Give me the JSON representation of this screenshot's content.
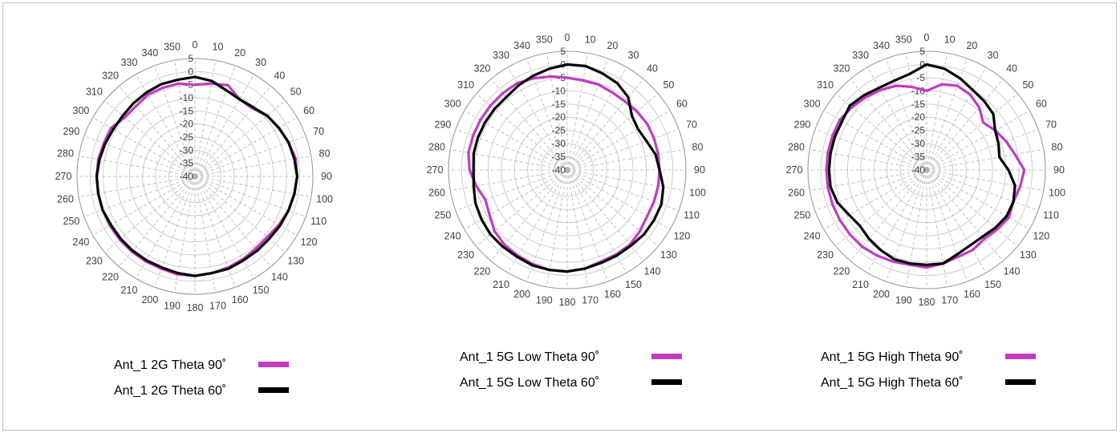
{
  "chart_data": [
    {
      "type": "polar-line",
      "angle_ticks": [
        0,
        10,
        20,
        30,
        40,
        50,
        60,
        70,
        80,
        90,
        100,
        110,
        120,
        130,
        140,
        150,
        160,
        170,
        180,
        190,
        200,
        210,
        220,
        230,
        240,
        250,
        260,
        270,
        280,
        290,
        300,
        310,
        320,
        330,
        340,
        350
      ],
      "radial_ticks": [
        5,
        0,
        -5,
        -10,
        -15,
        -20,
        -25,
        -30,
        -35,
        -40
      ],
      "rlim": [
        -40,
        5
      ],
      "grid": true,
      "legend_location": "bottom",
      "angles": [
        0,
        10,
        20,
        30,
        40,
        50,
        60,
        70,
        80,
        90,
        100,
        110,
        120,
        130,
        140,
        150,
        160,
        170,
        180,
        190,
        200,
        210,
        220,
        230,
        240,
        250,
        260,
        270,
        280,
        290,
        300,
        310,
        320,
        330,
        340,
        350
      ],
      "series": [
        {
          "name": "Ant_1 2G Theta 90˚",
          "color": "#c03cc0",
          "r": [
            -5,
            -4,
            -3,
            -6,
            -6,
            -4,
            -3,
            -2,
            -1,
            -1,
            -1.5,
            -2,
            -3,
            -4,
            -4,
            -3.5,
            -3,
            -2.5,
            -2,
            -2,
            -2.5,
            -2.5,
            -2.5,
            -2.5,
            -2.5,
            -2.5,
            -2.5,
            -2.5,
            -2.5,
            -3,
            -3,
            -5,
            -5,
            -4,
            -4,
            -4
          ]
        },
        {
          "name": "Ant_1 2G Theta 60˚",
          "color": "#000000",
          "r": [
            -2,
            -3,
            -5,
            -6,
            -5.5,
            -4,
            -3,
            -2,
            -1.5,
            -1,
            -1.5,
            -2,
            -2.5,
            -3,
            -3,
            -3,
            -2.5,
            -2.5,
            -2,
            -2.5,
            -3,
            -3,
            -3,
            -3,
            -3,
            -2.5,
            -2.5,
            -2.5,
            -3,
            -3.5,
            -4,
            -4,
            -3.5,
            -3,
            -2.5,
            -2.5
          ]
        }
      ]
    },
    {
      "type": "polar-line",
      "angle_ticks": [
        0,
        10,
        20,
        30,
        40,
        50,
        60,
        70,
        80,
        90,
        100,
        110,
        120,
        130,
        140,
        150,
        160,
        170,
        180,
        190,
        200,
        210,
        220,
        230,
        240,
        250,
        260,
        270,
        280,
        290,
        300,
        310,
        320,
        330,
        340,
        350
      ],
      "radial_ticks": [
        5,
        0,
        -5,
        -10,
        -15,
        -20,
        -25,
        -30,
        -35,
        -40
      ],
      "rlim": [
        -40,
        5
      ],
      "grid": true,
      "legend_location": "bottom",
      "angles": [
        0,
        10,
        20,
        30,
        40,
        50,
        60,
        70,
        80,
        90,
        100,
        110,
        120,
        130,
        140,
        150,
        160,
        170,
        180,
        190,
        200,
        210,
        220,
        230,
        240,
        250,
        260,
        270,
        280,
        290,
        300,
        310,
        320,
        330,
        340,
        350
      ],
      "series": [
        {
          "name": "Ant_1 5G Low Theta 90˚",
          "color": "#c03cc0",
          "r": [
            -5,
            -5.5,
            -5.5,
            -6,
            -6,
            -5.5,
            -5,
            -5,
            -5,
            -5,
            -5,
            -5,
            -5,
            -4,
            -3,
            -3,
            -3,
            -2,
            -1.5,
            -1.5,
            -2,
            -2.5,
            -3,
            -4,
            -6,
            -7,
            -5,
            -3,
            -2,
            -2,
            -2,
            -2,
            -2,
            -2,
            -3,
            -4
          ]
        },
        {
          "name": "Ant_1 5G Low Theta 60˚",
          "color": "#000000",
          "r": [
            0,
            0,
            -1,
            -2,
            -4,
            -8,
            -9,
            -8,
            -6,
            -5,
            -3,
            -2,
            -2,
            -2,
            -2.5,
            -2.5,
            -2.5,
            -2,
            -1.5,
            -1.5,
            -1.5,
            -2,
            -2,
            -2,
            -2.5,
            -3,
            -4,
            -4.5,
            -4,
            -4,
            -4,
            -4,
            -4,
            -3,
            -2,
            -1
          ]
        }
      ]
    },
    {
      "type": "polar-line",
      "angle_ticks": [
        0,
        10,
        20,
        30,
        40,
        50,
        60,
        70,
        80,
        90,
        100,
        110,
        120,
        130,
        140,
        150,
        160,
        170,
        180,
        190,
        200,
        210,
        220,
        230,
        240,
        250,
        260,
        270,
        280,
        290,
        300,
        310,
        320,
        330,
        340,
        350
      ],
      "radial_ticks": [
        5,
        0,
        -5,
        -10,
        -15,
        -20,
        -25,
        -30,
        -35,
        -40
      ],
      "rlim": [
        -40,
        5
      ],
      "grid": true,
      "legend_location": "bottom",
      "angles": [
        0,
        10,
        20,
        30,
        40,
        50,
        60,
        70,
        80,
        90,
        100,
        110,
        120,
        130,
        140,
        150,
        160,
        170,
        180,
        190,
        200,
        210,
        220,
        230,
        240,
        250,
        260,
        270,
        280,
        290,
        300,
        310,
        320,
        330,
        340,
        350
      ],
      "series": [
        {
          "name": "Ant_1 5G High Theta 90˚",
          "color": "#c03cc0",
          "r": [
            -10,
            -7,
            -6,
            -7,
            -9,
            -12,
            -10,
            -8,
            -6,
            -3,
            -4,
            -5,
            -4,
            -5,
            -6,
            -5,
            -5,
            -4,
            -3,
            -3.5,
            -3,
            -2.5,
            -2,
            -2,
            -2,
            -2,
            -2,
            -2,
            -2,
            -2,
            -2,
            -3,
            -4,
            -5,
            -6,
            -8
          ]
        },
        {
          "name": "Ant_1 5G High Theta 60˚",
          "color": "#000000",
          "r": [
            0,
            -1,
            -3,
            -5,
            -6,
            -7,
            -10,
            -11,
            -12,
            -9,
            -6,
            -5,
            -5,
            -6,
            -7,
            -7,
            -6,
            -4,
            -4,
            -4,
            -4,
            -5,
            -6,
            -7,
            -6,
            -4,
            -3,
            -3,
            -3,
            -3,
            -3,
            -2,
            -3,
            -4,
            -4,
            -3
          ]
        }
      ]
    }
  ]
}
